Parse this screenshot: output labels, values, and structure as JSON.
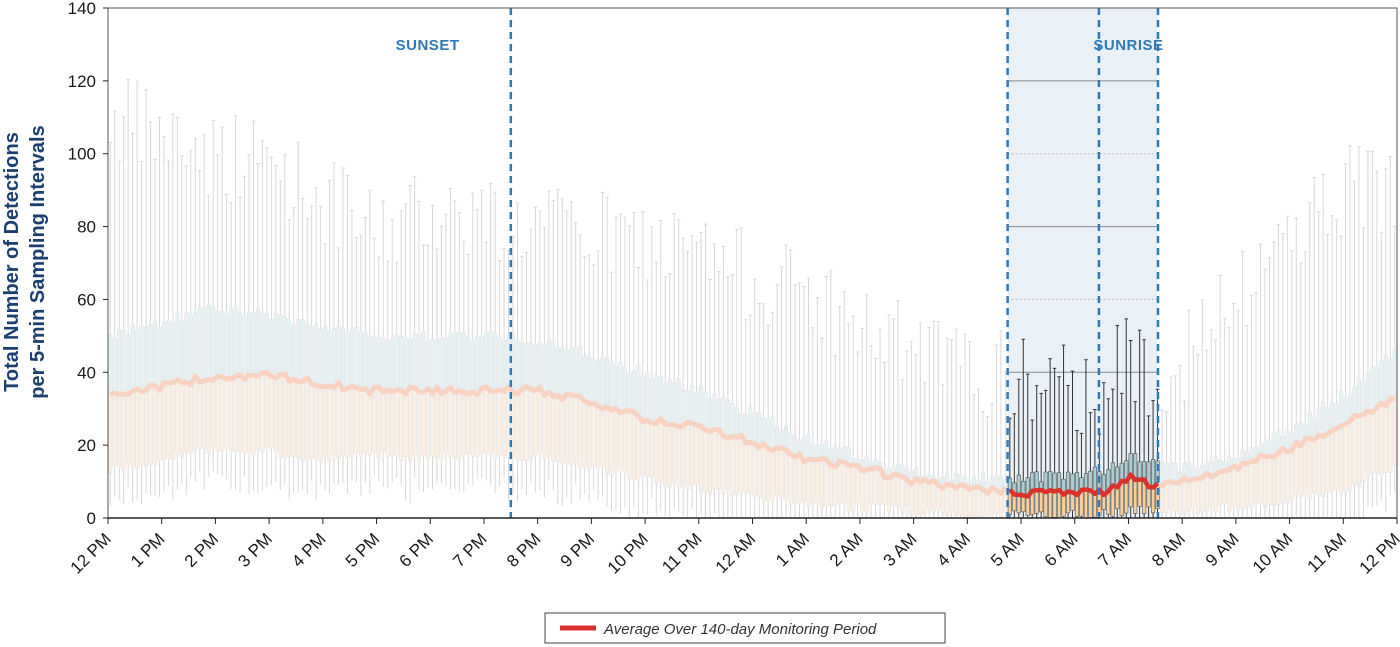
{
  "chart_data": {
    "type": "box",
    "title": "",
    "ylabel_lines": [
      "Total Number of Detections",
      "per 5-min Sampling Intervals"
    ],
    "xlabel": "",
    "ylim": [
      0,
      140
    ],
    "yticks": [
      0,
      20,
      40,
      60,
      80,
      100,
      120,
      140
    ],
    "xticks": [
      "12 PM",
      "1 PM",
      "2 PM",
      "3 PM",
      "4 PM",
      "5 PM",
      "6 PM",
      "7 PM",
      "8 PM",
      "9 PM",
      "10 PM",
      "11 PM",
      "12 AM",
      "1 AM",
      "2 AM",
      "3 AM",
      "4 AM",
      "5 AM",
      "6 AM",
      "7 AM",
      "8 AM",
      "9 AM",
      "10 AM",
      "11 AM",
      "12 PM"
    ],
    "x_unit": "hours since 12 PM",
    "night_window": [
      16.75,
      19.55
    ],
    "twilight_windows": [
      [
        16.75,
        19.55
      ],
      [
        18.45,
        19.55
      ]
    ],
    "region_labels": [
      {
        "text": "SUNSET",
        "x": 5.95
      },
      {
        "text": "SUNRISE",
        "x": 19.0
      }
    ],
    "reference_lines": [
      40,
      80,
      120
    ],
    "dotted_lines": [
      60,
      100
    ],
    "legend": "Average Over 140-day Monitoring Period",
    "colors": {
      "mean_line": "#d9312b",
      "box_upper": "#a9cdd2",
      "box_lower": "#f4cfa0",
      "whisker": "#333333",
      "night_bg": "#e9f1f7",
      "dashed": "#2e7ab8",
      "faded_mean": "#f9d2c2",
      "faded_upper": "#e6f1f3",
      "faded_lower": "#fbefe4",
      "faded_whisker": "#d8d8d8"
    },
    "anchors": {
      "hours": [
        0,
        1,
        2,
        3,
        4,
        4.75,
        5,
        6,
        7,
        7.5,
        8,
        9,
        10,
        11,
        12,
        13,
        14,
        15,
        16,
        17,
        18,
        18.5,
        19,
        19.5,
        20,
        21,
        22,
        23,
        24
      ],
      "mean": [
        34,
        36,
        39,
        39,
        37,
        35,
        35,
        35,
        35,
        35,
        35,
        32,
        27,
        25,
        21,
        16,
        14,
        10,
        8,
        7,
        7,
        7,
        11,
        9,
        10,
        14,
        19,
        26,
        33
      ],
      "q3": [
        50,
        54,
        58,
        56,
        52,
        51,
        50,
        50,
        50,
        50,
        49,
        45,
        40,
        35,
        29,
        22,
        17,
        13,
        11,
        11,
        12,
        13,
        17,
        16,
        14,
        17,
        24,
        34,
        46
      ],
      "q1": [
        13,
        16,
        19,
        18,
        16,
        18,
        17,
        17,
        17,
        17,
        17,
        14,
        11,
        8,
        6,
        4,
        3,
        2,
        1,
        1,
        1,
        1,
        2,
        2,
        2,
        3,
        5,
        8,
        14
      ],
      "max": [
        110,
        105,
        100,
        98,
        88,
        80,
        78,
        85,
        83,
        80,
        80,
        78,
        76,
        72,
        66,
        63,
        52,
        46,
        40,
        38,
        34,
        36,
        44,
        40,
        44,
        58,
        80,
        90,
        92
      ]
    }
  }
}
